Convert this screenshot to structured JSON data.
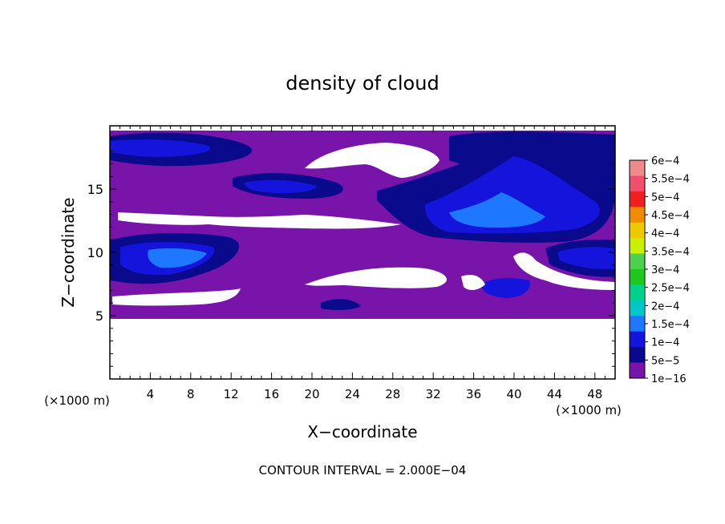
{
  "chart_data": {
    "type": "heatmap",
    "title": "density of cloud",
    "xlabel": "X−coordinate",
    "ylabel": "Z−coordinate",
    "x_unit_left": "(×1000 m)",
    "x_unit_right": "(×1000 m)",
    "footer": "CONTOUR INTERVAL = 2.000E−04",
    "xlim": [
      0,
      50
    ],
    "ylim": [
      0,
      20
    ],
    "x_ticks": [
      4,
      8,
      12,
      16,
      20,
      24,
      28,
      32,
      36,
      40,
      44,
      48
    ],
    "y_ticks": [
      5,
      10,
      15
    ],
    "colorbar": {
      "labels": [
        "6e−4",
        "5.5e−4",
        "5e−4",
        "4.5e−4",
        "4e−4",
        "3.5e−4",
        "3e−4",
        "2.5e−4",
        "2e−4",
        "1.5e−4",
        "1e−4",
        "5e−5",
        "1e−16"
      ],
      "colors": [
        "#f08a8a",
        "#f0506e",
        "#f02020",
        "#f08a00",
        "#f0c800",
        "#c8f000",
        "#50d050",
        "#1ec81e",
        "#00d28c",
        "#00c8c8",
        "#1e78ff",
        "#1414dc",
        "#0a0a8c",
        "#7814aa"
      ]
    },
    "regions": {
      "base_band": {
        "z_min": 4.8,
        "z_max": 19.5,
        "value": "1e−16"
      },
      "clear_below_z": 4.8
    }
  }
}
